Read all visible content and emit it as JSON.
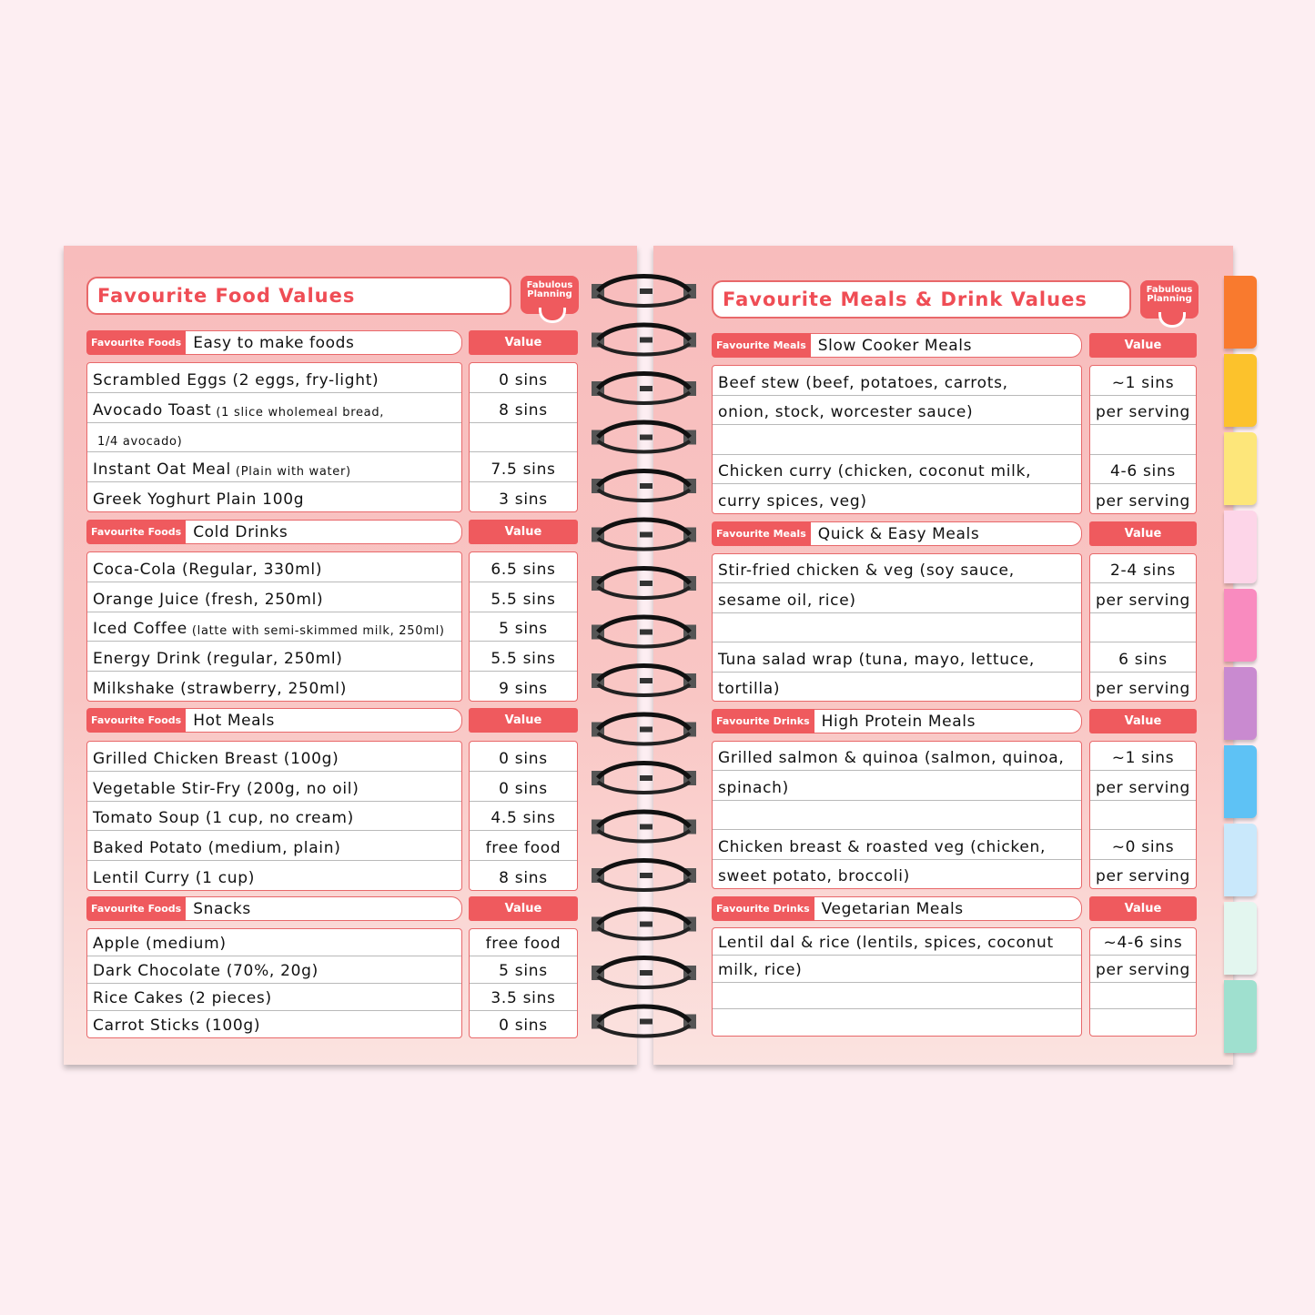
{
  "left": {
    "title": "Favourite Food Values",
    "logo": "Fabulous Planning",
    "value_header": "Value",
    "sections": [
      {
        "tag": "Favourite Foods",
        "heading": "Easy to make foods",
        "rows": [
          {
            "name": "Scrambled Eggs (2 eggs, fry-light)",
            "note": "",
            "value": "0 sins"
          },
          {
            "name": "Avocado Toast",
            "note": "(1 slice wholemeal bread,",
            "value": "8 sins"
          },
          {
            "name": "",
            "note": "1/4 avocado)",
            "value": ""
          },
          {
            "name": "Instant Oat Meal",
            "note": "(Plain with water)",
            "value": "7.5 sins"
          },
          {
            "name": "Greek Yoghurt Plain 100g",
            "note": "",
            "value": "3 sins"
          }
        ]
      },
      {
        "tag": "Favourite Foods",
        "heading": "Cold Drinks",
        "rows": [
          {
            "name": "Coca-Cola (Regular, 330ml)",
            "note": "",
            "value": "6.5 sins"
          },
          {
            "name": "Orange Juice (fresh, 250ml)",
            "note": "",
            "value": "5.5 sins"
          },
          {
            "name": "Iced Coffee",
            "note": "(latte with semi-skimmed milk, 250ml)",
            "value": "5 sins"
          },
          {
            "name": "Energy Drink (regular, 250ml)",
            "note": "",
            "value": "5.5 sins"
          },
          {
            "name": "Milkshake (strawberry, 250ml)",
            "note": "",
            "value": "9 sins"
          }
        ]
      },
      {
        "tag": "Favourite Foods",
        "heading": "Hot Meals",
        "rows": [
          {
            "name": "Grilled Chicken Breast (100g)",
            "note": "",
            "value": "0 sins"
          },
          {
            "name": "Vegetable Stir-Fry (200g, no oil)",
            "note": "",
            "value": "0 sins"
          },
          {
            "name": "Tomato Soup (1 cup, no cream)",
            "note": "",
            "value": "4.5 sins"
          },
          {
            "name": "Baked Potato (medium, plain)",
            "note": "",
            "value": "free food"
          },
          {
            "name": "Lentil Curry (1 cup)",
            "note": "",
            "value": "8 sins"
          }
        ]
      },
      {
        "tag": "Favourite Foods",
        "heading": "Snacks",
        "rows": [
          {
            "name": "Apple (medium)",
            "note": "",
            "value": "free food"
          },
          {
            "name": "Dark Chocolate (70%, 20g)",
            "note": "",
            "value": "5 sins"
          },
          {
            "name": "Rice Cakes (2 pieces)",
            "note": "",
            "value": "3.5 sins"
          },
          {
            "name": "Carrot Sticks (100g)",
            "note": "",
            "value": "0 sins"
          }
        ]
      }
    ]
  },
  "right": {
    "title": "Favourite Meals & Drink Values",
    "logo": "Fabulous Planning",
    "value_header": "Value",
    "sections": [
      {
        "tag": "Favourite Meals",
        "heading": "Slow Cooker Meals",
        "rows": [
          {
            "name": "Beef stew (beef, potatoes, carrots,",
            "note": "",
            "value": "~1 sins"
          },
          {
            "name": "onion, stock, worcester sauce)",
            "note": "",
            "value": "per serving"
          },
          {
            "name": "",
            "note": "",
            "value": ""
          },
          {
            "name": "Chicken curry (chicken, coconut milk,",
            "note": "",
            "value": "4-6 sins"
          },
          {
            "name": "curry spices, veg)",
            "note": "",
            "value": "per serving"
          }
        ]
      },
      {
        "tag": "Favourite Meals",
        "heading": "Quick & Easy Meals",
        "rows": [
          {
            "name": "Stir-fried chicken & veg (soy sauce,",
            "note": "",
            "value": "2-4 sins"
          },
          {
            "name": "sesame oil, rice)",
            "note": "",
            "value": "per serving"
          },
          {
            "name": "",
            "note": "",
            "value": ""
          },
          {
            "name": "Tuna salad wrap (tuna, mayo, lettuce,",
            "note": "",
            "value": "6 sins"
          },
          {
            "name": "tortilla)",
            "note": "",
            "value": "per serving"
          }
        ]
      },
      {
        "tag": "Favourite Drinks",
        "heading": "High Protein Meals",
        "rows": [
          {
            "name": "Grilled salmon & quinoa (salmon, quinoa,",
            "note": "",
            "value": "~1 sins"
          },
          {
            "name": "spinach)",
            "note": "",
            "value": "per serving"
          },
          {
            "name": "",
            "note": "",
            "value": ""
          },
          {
            "name": "Chicken breast & roasted veg (chicken,",
            "note": "",
            "value": "~0 sins"
          },
          {
            "name": "sweet potato, broccoli)",
            "note": "",
            "value": "per serving"
          }
        ]
      },
      {
        "tag": "Favourite Drinks",
        "heading": "Vegetarian Meals",
        "rows": [
          {
            "name": "Lentil dal & rice (lentils, spices, coconut",
            "note": "",
            "value": "~4-6 sins"
          },
          {
            "name": "milk, rice)",
            "note": "",
            "value": "per serving"
          },
          {
            "name": "",
            "note": "",
            "value": ""
          },
          {
            "name": "",
            "note": "",
            "value": ""
          }
        ]
      }
    ]
  },
  "colors": {
    "accent": "#ef5a5e",
    "tabs": [
      "#f97a2e",
      "#fcc22c",
      "#fde67a",
      "#fdd5e8",
      "#f98bbf",
      "#c98ad0",
      "#5ec2f5",
      "#c9e8fb",
      "#e3f6ef",
      "#9fe0cf"
    ]
  }
}
